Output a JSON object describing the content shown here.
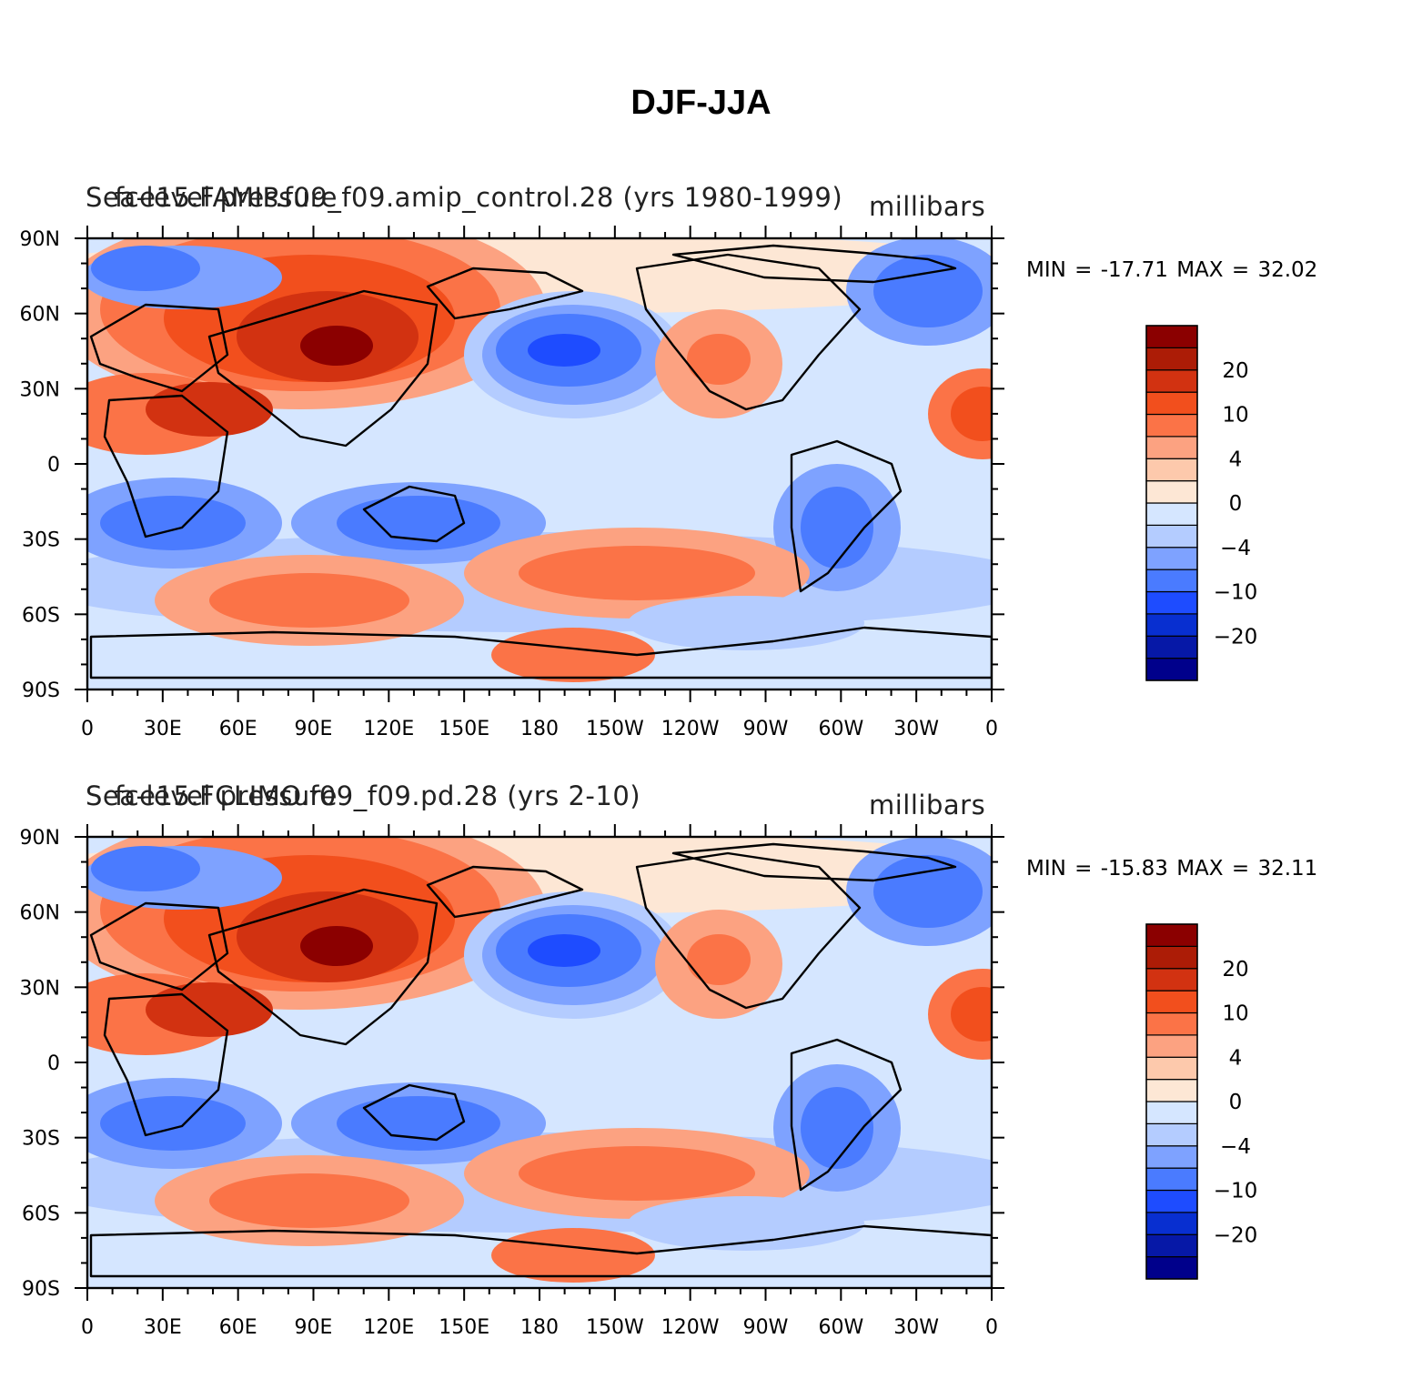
{
  "title": "DJF-JJA",
  "colorbar": {
    "colors": [
      "#00008b",
      "#0618a7",
      "#082fd0",
      "#1e4cff",
      "#4a7bff",
      "#7ea2ff",
      "#b4ccff",
      "#d5e6ff",
      "#fde7d5",
      "#fdc9ac",
      "#fca281",
      "#fb7347",
      "#f24f1d",
      "#d23211",
      "#ac1c06",
      "#8b0000"
    ],
    "tick_labels": [
      "−20",
      "−10",
      "−4",
      "0",
      "4",
      "10",
      "20"
    ]
  },
  "map_axes": {
    "x_tick_labels": [
      "0",
      "30E",
      "60E",
      "90E",
      "120E",
      "150E",
      "180",
      "150W",
      "120W",
      "90W",
      "60W",
      "30W",
      "0"
    ],
    "y_tick_labels": [
      "90N",
      "60N",
      "30N",
      "0",
      "30S",
      "60S",
      "90S"
    ]
  },
  "panels": [
    {
      "left_title": "Sea-level pressure",
      "center_title": "fce15.FAMIP.f09_f09.amip_control.28 (yrs 1980-1999)",
      "units": "millibars",
      "min_label": "MIN =",
      "min_value": "-17.71",
      "max_label": "MAX =",
      "max_value": "32.02"
    },
    {
      "left_title": "Sea-level pressure",
      "center_title": "fce15.FCLIMO.f09_f09.pd.28 (yrs 2-10)",
      "units": "millibars",
      "min_label": "MIN =",
      "min_value": "-15.83",
      "max_label": "MAX =",
      "max_value": "32.11"
    }
  ]
}
